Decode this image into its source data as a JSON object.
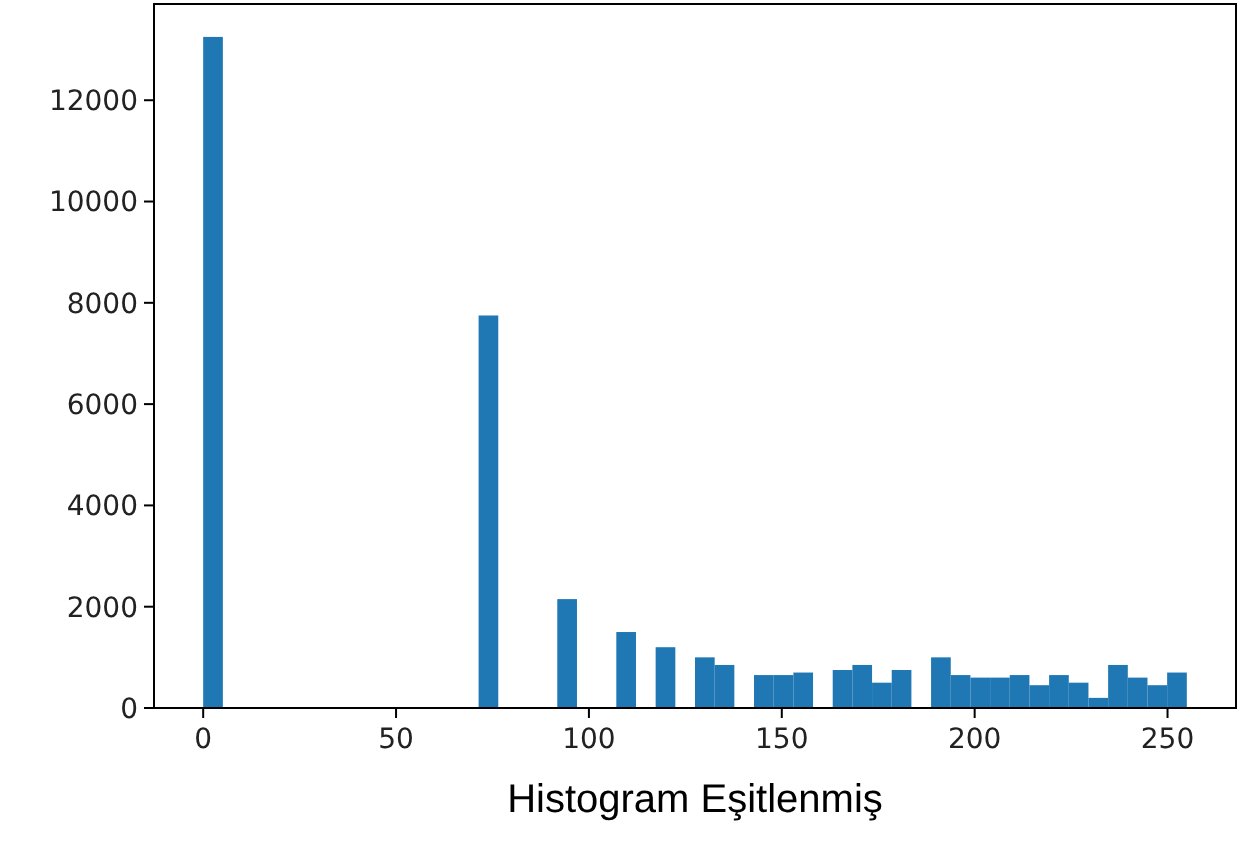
{
  "chart_data": {
    "type": "histogram",
    "xlabel": "Histogram Eşitlenmiş",
    "color": "#1f77b4",
    "bins": [
      0,
      5.1,
      10.2,
      15.3,
      20.4,
      25.5,
      30.6,
      35.7,
      40.8,
      45.9,
      51,
      56.1,
      61.2,
      66.3,
      71.4,
      76.5,
      81.6,
      86.7,
      91.8,
      96.9,
      102,
      107.1,
      112.2,
      117.3,
      122.4,
      127.5,
      132.6,
      137.7,
      142.8,
      147.9,
      153,
      158.1,
      163.2,
      168.3,
      173.4,
      178.5,
      183.6,
      188.7,
      193.8,
      198.9,
      204,
      209.1,
      214.2,
      219.3,
      224.4,
      229.5,
      234.6,
      239.7,
      244.8,
      249.9,
      255
    ],
    "values": [
      13250,
      0,
      0,
      0,
      0,
      0,
      0,
      0,
      0,
      0,
      0,
      0,
      0,
      0,
      7750,
      0,
      0,
      0,
      2150,
      0,
      0,
      1500,
      0,
      1200,
      0,
      1000,
      850,
      0,
      650,
      650,
      700,
      0,
      750,
      850,
      500,
      750,
      0,
      1000,
      650,
      600,
      600,
      650,
      450,
      650,
      500,
      200,
      850,
      600,
      450,
      700
    ],
    "xlim": [
      -12.75,
      267.75
    ],
    "xticks": [
      0,
      50,
      100,
      150,
      200,
      250
    ],
    "ylim": [
      0,
      13900
    ],
    "yticks": [
      0,
      2000,
      4000,
      6000,
      8000,
      10000,
      12000
    ],
    "grid": false
  }
}
